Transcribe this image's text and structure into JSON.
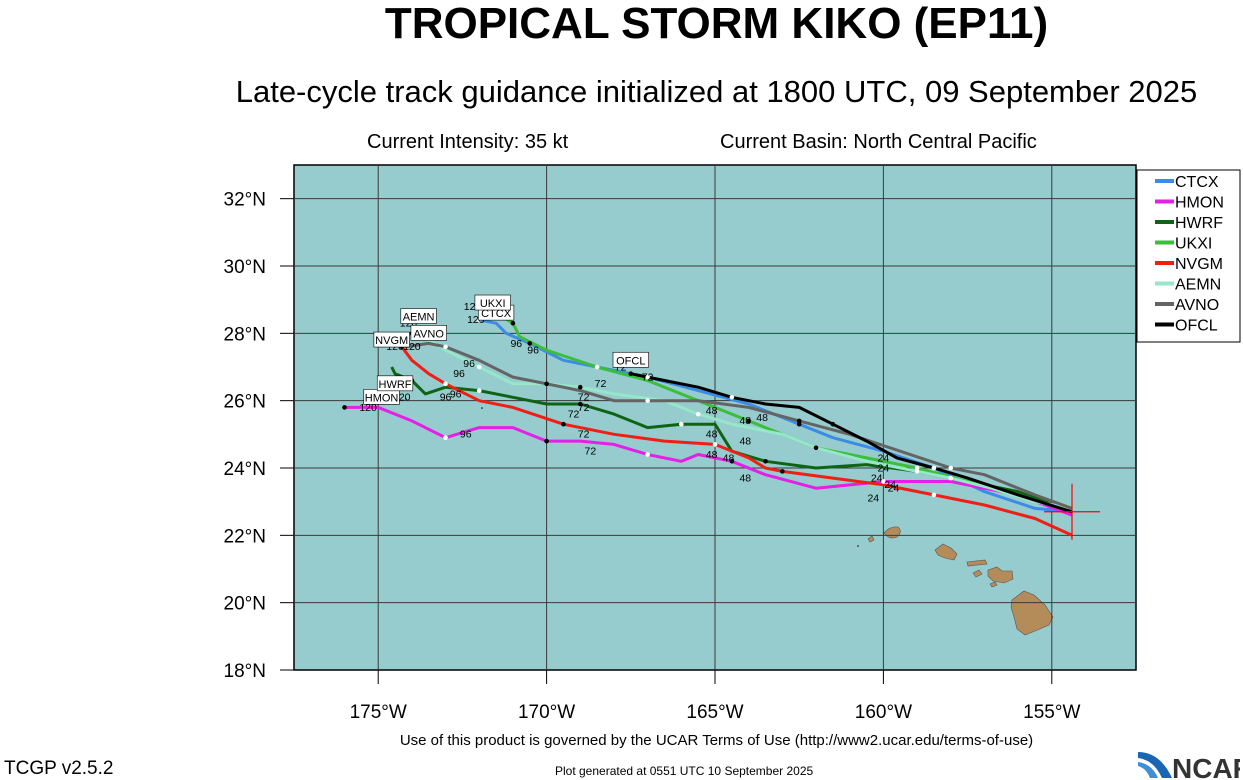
{
  "header": {
    "title": "TROPICAL STORM KIKO (EP11)",
    "subtitle": "Late-cycle track guidance initialized at 1800 UTC, 09 September 2025",
    "intensity": "Current Intensity: 35 kt",
    "basin": "Current Basin: North Central Pacific"
  },
  "footer": {
    "terms": "Use of this product is governed by the UCAR Terms of Use (http://www2.ucar.edu/terms-of-use)",
    "version": "TCGP v2.5.2",
    "generated": "Plot generated at 0551 UTC   10 September 2025",
    "logo_text": "NCAR"
  },
  "colors": {
    "ocean": "#96ccce",
    "land": "#b48c5a",
    "grid": "#3a3a3a",
    "storm_marker": "#ff0000"
  },
  "chart_data": {
    "type": "line",
    "xlim": [
      -177.5,
      -152.5
    ],
    "ylim": [
      18,
      33
    ],
    "x_ticks": [
      -175,
      -170,
      -165,
      -160,
      -155
    ],
    "x_tick_labels": [
      "175°W",
      "170°W",
      "165°W",
      "160°W",
      "155°W"
    ],
    "y_ticks": [
      18,
      20,
      22,
      24,
      26,
      28,
      30,
      32
    ],
    "y_tick_labels": [
      "18°N",
      "20°N",
      "22°N",
      "24°N",
      "26°N",
      "28°N",
      "30°N",
      "32°N"
    ],
    "grid": true,
    "legend_position": "top-right",
    "storm_position": [
      -154.4,
      22.7
    ],
    "series": [
      {
        "name": "CTCX",
        "color": "#3c8ce6",
        "points": [
          [
            -154.4,
            22.7
          ],
          [
            -155.5,
            22.8
          ],
          [
            -157,
            23.3
          ],
          [
            -158.5,
            24
          ],
          [
            -160,
            24.5
          ],
          [
            -161.5,
            24.9
          ],
          [
            -162.5,
            25.3
          ],
          [
            -164,
            25.9
          ],
          [
            -165.5,
            26.3
          ],
          [
            -167,
            26.7
          ],
          [
            -168.5,
            27
          ],
          [
            -169.5,
            27.2
          ],
          [
            -170.5,
            27.7
          ],
          [
            -171.2,
            28
          ],
          [
            -171.5,
            28.3
          ],
          [
            -172,
            28.4
          ]
        ],
        "label": "CTCX",
        "label_at": [
          -171.5,
          28.6
        ]
      },
      {
        "name": "HMON",
        "color": "#e61ee6",
        "points": [
          [
            -154.4,
            22.6
          ],
          [
            -156,
            23.2
          ],
          [
            -158,
            23.6
          ],
          [
            -160,
            23.6
          ],
          [
            -162,
            23.4
          ],
          [
            -163.5,
            23.8
          ],
          [
            -164.5,
            24.2
          ],
          [
            -165.5,
            24.4
          ],
          [
            -166,
            24.2
          ],
          [
            -167,
            24.4
          ],
          [
            -168,
            24.7
          ],
          [
            -169,
            24.8
          ],
          [
            -170,
            24.8
          ],
          [
            -171,
            25.2
          ],
          [
            -172,
            25.2
          ],
          [
            -173,
            24.9
          ],
          [
            -174,
            25.4
          ],
          [
            -175,
            25.8
          ],
          [
            -176,
            25.8
          ]
        ],
        "label": "HMON",
        "label_at": [
          -174.9,
          26.1
        ]
      },
      {
        "name": "HWRF",
        "color": "#0f6414",
        "points": [
          [
            -154.4,
            22.7
          ],
          [
            -156,
            23.3
          ],
          [
            -157.5,
            23.6
          ],
          [
            -159,
            23.9
          ],
          [
            -160.5,
            24.1
          ],
          [
            -162,
            24
          ],
          [
            -163.5,
            24.2
          ],
          [
            -164.5,
            24.5
          ],
          [
            -165,
            25.3
          ],
          [
            -166,
            25.3
          ],
          [
            -167,
            25.2
          ],
          [
            -168,
            25.6
          ],
          [
            -169,
            25.9
          ],
          [
            -170,
            25.9
          ],
          [
            -171,
            26.1
          ],
          [
            -172,
            26.3
          ],
          [
            -173,
            26.4
          ],
          [
            -173.6,
            26.2
          ],
          [
            -174,
            26.6
          ],
          [
            -174.5,
            26.8
          ],
          [
            -174.6,
            27
          ]
        ],
        "label": "HWRF",
        "label_at": [
          -174.5,
          26.5
        ]
      },
      {
        "name": "UKXI",
        "color": "#3cbe3c",
        "points": [
          [
            -154.4,
            22.7
          ],
          [
            -156,
            23.2
          ],
          [
            -157.5,
            23.6
          ],
          [
            -159,
            24
          ],
          [
            -160.5,
            24.3
          ],
          [
            -162,
            24.6
          ],
          [
            -164,
            25.4
          ],
          [
            -165.5,
            26
          ],
          [
            -167,
            26.6
          ],
          [
            -168.5,
            27
          ],
          [
            -170,
            27.5
          ],
          [
            -170.8,
            27.9
          ],
          [
            -171,
            28.3
          ],
          [
            -171.5,
            28.6
          ]
        ],
        "label": "UKXI",
        "label_at": [
          -171.6,
          28.9
        ]
      },
      {
        "name": "NVGM",
        "color": "#f01e14",
        "points": [
          [
            -154.4,
            22
          ],
          [
            -155.5,
            22.5
          ],
          [
            -157,
            22.9
          ],
          [
            -158.5,
            23.2
          ],
          [
            -160,
            23.5
          ],
          [
            -161.5,
            23.7
          ],
          [
            -163,
            23.9
          ],
          [
            -163.5,
            24
          ],
          [
            -164,
            24.3
          ],
          [
            -165,
            24.7
          ],
          [
            -166.5,
            24.8
          ],
          [
            -168,
            25
          ],
          [
            -169.5,
            25.3
          ],
          [
            -171,
            25.8
          ],
          [
            -172,
            26
          ],
          [
            -173,
            26.5
          ],
          [
            -173.5,
            26.8
          ],
          [
            -174,
            27.2
          ],
          [
            -174.3,
            27.6
          ]
        ],
        "label": "NVGM",
        "label_at": [
          -174.6,
          27.8
        ]
      },
      {
        "name": "AEMN",
        "color": "#96e6c8",
        "points": [
          [
            -154.4,
            22.8
          ],
          [
            -155.5,
            23
          ],
          [
            -156.8,
            23.4
          ],
          [
            -158,
            23.7
          ],
          [
            -159,
            23.9
          ],
          [
            -160.5,
            24.2
          ],
          [
            -162,
            24.6
          ],
          [
            -163,
            25
          ],
          [
            -164.5,
            25.3
          ],
          [
            -165.5,
            25.6
          ],
          [
            -166.5,
            26
          ],
          [
            -168,
            26.2
          ],
          [
            -169,
            26.4
          ],
          [
            -170,
            26.5
          ],
          [
            -171,
            26.5
          ],
          [
            -172,
            27
          ],
          [
            -173,
            27.5
          ],
          [
            -173.5,
            27.8
          ],
          [
            -174,
            28
          ]
        ],
        "label": "AEMN",
        "label_at": [
          -173.8,
          28.5
        ]
      },
      {
        "name": "AVNO",
        "color": "#646464",
        "points": [
          [
            -154.4,
            22.8
          ],
          [
            -155.5,
            23.2
          ],
          [
            -157,
            23.8
          ],
          [
            -158,
            24
          ],
          [
            -159.5,
            24.5
          ],
          [
            -161,
            25
          ],
          [
            -162.5,
            25.4
          ],
          [
            -164,
            25.8
          ],
          [
            -165.5,
            26
          ],
          [
            -167,
            26
          ],
          [
            -168,
            26
          ],
          [
            -169,
            26.3
          ],
          [
            -170,
            26.5
          ],
          [
            -171,
            26.7
          ],
          [
            -172,
            27.2
          ],
          [
            -173,
            27.6
          ],
          [
            -173.5,
            27.7
          ],
          [
            -174.2,
            27.6
          ]
        ],
        "label": "AVNO",
        "label_at": [
          -173.5,
          28
        ]
      },
      {
        "name": "OFCL",
        "color": "#000000",
        "points": [
          [
            -154.4,
            22.7
          ],
          [
            -156,
            23.2
          ],
          [
            -157.5,
            23.7
          ],
          [
            -158.5,
            24
          ],
          [
            -159.6,
            24.3
          ],
          [
            -160.5,
            24.8
          ],
          [
            -161.5,
            25.3
          ],
          [
            -162.5,
            25.8
          ],
          [
            -163.5,
            25.9
          ],
          [
            -164.5,
            26.1
          ],
          [
            -165.5,
            26.4
          ],
          [
            -166.5,
            26.6
          ],
          [
            -167.5,
            26.8
          ]
        ],
        "label": "OFCL",
        "label_at": [
          -167.5,
          27.2
        ]
      }
    ],
    "hour_labels": [
      {
        "text": "120",
        "at": [
          -172.1,
          28.3
        ]
      },
      {
        "text": "120",
        "at": [
          -172.2,
          28.7
        ]
      },
      {
        "text": "120",
        "at": [
          -174.1,
          28.2
        ]
      },
      {
        "text": "120",
        "at": [
          -174.5,
          27.5
        ]
      },
      {
        "text": "120",
        "at": [
          -174.0,
          27.5
        ]
      },
      {
        "text": "120",
        "at": [
          -175.3,
          25.7
        ]
      },
      {
        "text": "120",
        "at": [
          -174.3,
          26.0
        ]
      },
      {
        "text": "96",
        "at": [
          -170.9,
          27.6
        ]
      },
      {
        "text": "96",
        "at": [
          -170.4,
          27.4
        ]
      },
      {
        "text": "96",
        "at": [
          -172.3,
          27.0
        ]
      },
      {
        "text": "96",
        "at": [
          -172.6,
          26.7
        ]
      },
      {
        "text": "96",
        "at": [
          -173.0,
          26.0
        ]
      },
      {
        "text": "96",
        "at": [
          -172.7,
          26.1
        ]
      },
      {
        "text": "96",
        "at": [
          -172.4,
          24.9
        ]
      },
      {
        "text": "72",
        "at": [
          -167.8,
          26.9
        ]
      },
      {
        "text": "72",
        "at": [
          -167.0,
          26.6
        ]
      },
      {
        "text": "72",
        "at": [
          -168.4,
          26.4
        ]
      },
      {
        "text": "72",
        "at": [
          -168.9,
          26.0
        ]
      },
      {
        "text": "72",
        "at": [
          -169.2,
          25.5
        ]
      },
      {
        "text": "72",
        "at": [
          -168.9,
          25.7
        ]
      },
      {
        "text": "72",
        "at": [
          -168.9,
          24.9
        ]
      },
      {
        "text": "72",
        "at": [
          -168.7,
          24.4
        ]
      },
      {
        "text": "48",
        "at": [
          -165.1,
          25.6
        ]
      },
      {
        "text": "48",
        "at": [
          -164.1,
          25.3
        ]
      },
      {
        "text": "48",
        "at": [
          -163.6,
          25.4
        ]
      },
      {
        "text": "48",
        "at": [
          -164.1,
          24.7
        ]
      },
      {
        "text": "48",
        "at": [
          -165.1,
          24.9
        ]
      },
      {
        "text": "48",
        "at": [
          -165.1,
          24.3
        ]
      },
      {
        "text": "48",
        "at": [
          -164.6,
          24.2
        ]
      },
      {
        "text": "48",
        "at": [
          -164.1,
          23.6
        ]
      },
      {
        "text": "24",
        "at": [
          -160.0,
          24.2
        ]
      },
      {
        "text": "24",
        "at": [
          -160.0,
          23.9
        ]
      },
      {
        "text": "24",
        "at": [
          -160.2,
          23.6
        ]
      },
      {
        "text": "24",
        "at": [
          -159.8,
          23.4
        ]
      },
      {
        "text": "24",
        "at": [
          -160.3,
          23.0
        ]
      },
      {
        "text": "24",
        "at": [
          -159.7,
          23.3
        ]
      }
    ]
  }
}
